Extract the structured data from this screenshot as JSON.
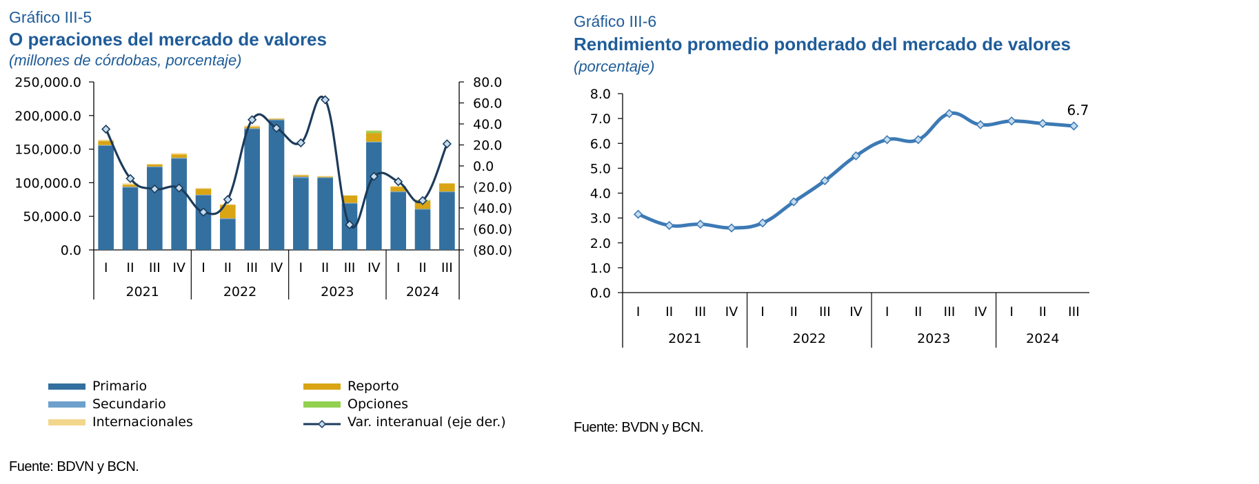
{
  "colors": {
    "primario": "#33709f",
    "secundario": "#6ea0cc",
    "reporto": "#d9a515",
    "opciones": "#92d050",
    "internacionales": "#f2d68c",
    "var_line": "#1c3b5a",
    "rend_line": "#3c7ab5",
    "marker_fill": "#c5dcef",
    "title": "#1f5c99"
  },
  "left": {
    "figure_number": "Gráfico III-5",
    "title": "O peraciones del mercado de valores",
    "subtitle": "(millones de córdobas, porcentaje)",
    "source": "Fuente: BDVN y BCN.",
    "legend": [
      {
        "key": "primario",
        "label": "Primario",
        "icon": "bar-swatch"
      },
      {
        "key": "reporto",
        "label": "Reporto",
        "icon": "bar-swatch"
      },
      {
        "key": "secundario",
        "label": "Secundario",
        "icon": "bar-swatch"
      },
      {
        "key": "opciones",
        "label": "Opciones",
        "icon": "bar-swatch"
      },
      {
        "key": "internacionales",
        "label": "Internacionales",
        "icon": "bar-swatch"
      },
      {
        "key": "var",
        "label": "Var. interanual (eje der.)",
        "icon": "line-diamond"
      }
    ]
  },
  "right": {
    "figure_number": "Gráfico III-6",
    "title": "Rendimiento promedio ponderado del mercado de valores",
    "subtitle": "(porcentaje)",
    "source": "Fuente: BVDN y BCN."
  },
  "chart_data": [
    {
      "type": "bar",
      "stacked": true,
      "categories": [
        "I",
        "II",
        "III",
        "IV",
        "I",
        "II",
        "III",
        "IV",
        "I",
        "II",
        "III",
        "IV",
        "I",
        "II",
        "III"
      ],
      "groups": [
        {
          "label": "2021",
          "span": 4
        },
        {
          "label": "2022",
          "span": 4
        },
        {
          "label": "2023",
          "span": 4
        },
        {
          "label": "2024",
          "span": 3
        }
      ],
      "ylim": [
        0,
        250000
      ],
      "yticks": [
        0,
        50000,
        100000,
        150000,
        200000,
        250000
      ],
      "ytick_labels": [
        "0.0",
        "50,000.0",
        "100,000.0",
        "150,000.0",
        "200,000.0",
        "250,000.0"
      ],
      "y2lim": [
        -80,
        80
      ],
      "y2ticks": [
        -80,
        -60,
        -40,
        -20,
        0,
        20,
        40,
        60,
        80
      ],
      "y2tick_labels": [
        "(80.0)",
        "(60.0)",
        "(40.0)",
        "(20.0)",
        "0.0",
        "20.0",
        "40.0",
        "60.0",
        "80.0"
      ],
      "series": [
        {
          "name": "Primario",
          "key": "primario",
          "values": [
            155000,
            93000,
            123000,
            136000,
            81000,
            46000,
            180000,
            193000,
            107000,
            107000,
            69000,
            160000,
            86000,
            60000,
            86000
          ]
        },
        {
          "name": "Secundario",
          "key": "secundario",
          "values": [
            1000,
            1000,
            1000,
            1000,
            1000,
            1000,
            1000,
            1000,
            2000,
            1000,
            1000,
            1000,
            1000,
            1000,
            1000
          ]
        },
        {
          "name": "Reporto",
          "key": "reporto",
          "values": [
            6000,
            3000,
            3000,
            5000,
            9000,
            20000,
            2000,
            1000,
            2000,
            1000,
            11000,
            13000,
            7000,
            12000,
            12000
          ]
        },
        {
          "name": "Opciones",
          "key": "opciones",
          "values": [
            0,
            0,
            0,
            0,
            0,
            0,
            0,
            0,
            0,
            0,
            0,
            3000,
            0,
            1000,
            0
          ]
        },
        {
          "name": "Internacionales",
          "key": "internacionales",
          "values": [
            2000,
            2000,
            1000,
            2000,
            1000,
            1000,
            2000,
            1000,
            1000,
            1000,
            0,
            1000,
            1000,
            1000,
            0
          ]
        },
        {
          "name": "Var. interanual (eje der.)",
          "key": "var",
          "type": "line",
          "axis": "right",
          "values": [
            35,
            -12,
            -22,
            -21,
            -44,
            -32,
            44,
            36,
            22,
            63,
            -56,
            -10,
            -15,
            -33,
            21
          ]
        }
      ]
    },
    {
      "type": "line",
      "categories": [
        "I",
        "II",
        "III",
        "IV",
        "I",
        "II",
        "III",
        "IV",
        "I",
        "II",
        "III",
        "IV",
        "I",
        "II",
        "III"
      ],
      "groups": [
        {
          "label": "2021",
          "span": 4
        },
        {
          "label": "2022",
          "span": 4
        },
        {
          "label": "2023",
          "span": 4
        },
        {
          "label": "2024",
          "span": 3
        }
      ],
      "ylim": [
        0,
        8
      ],
      "yticks": [
        0,
        1,
        2,
        3,
        4,
        5,
        6,
        7,
        8
      ],
      "ytick_labels": [
        "0.0",
        "1.0",
        "2.0",
        "3.0",
        "4.0",
        "5.0",
        "6.0",
        "7.0",
        "8.0"
      ],
      "series": [
        {
          "key": "rend",
          "values": [
            3.15,
            2.7,
            2.75,
            2.6,
            2.8,
            3.65,
            4.5,
            5.5,
            6.15,
            6.15,
            7.2,
            6.75,
            6.9,
            6.8,
            6.7
          ]
        }
      ],
      "annotations": [
        {
          "index": 14,
          "text": "6.7"
        }
      ]
    }
  ]
}
